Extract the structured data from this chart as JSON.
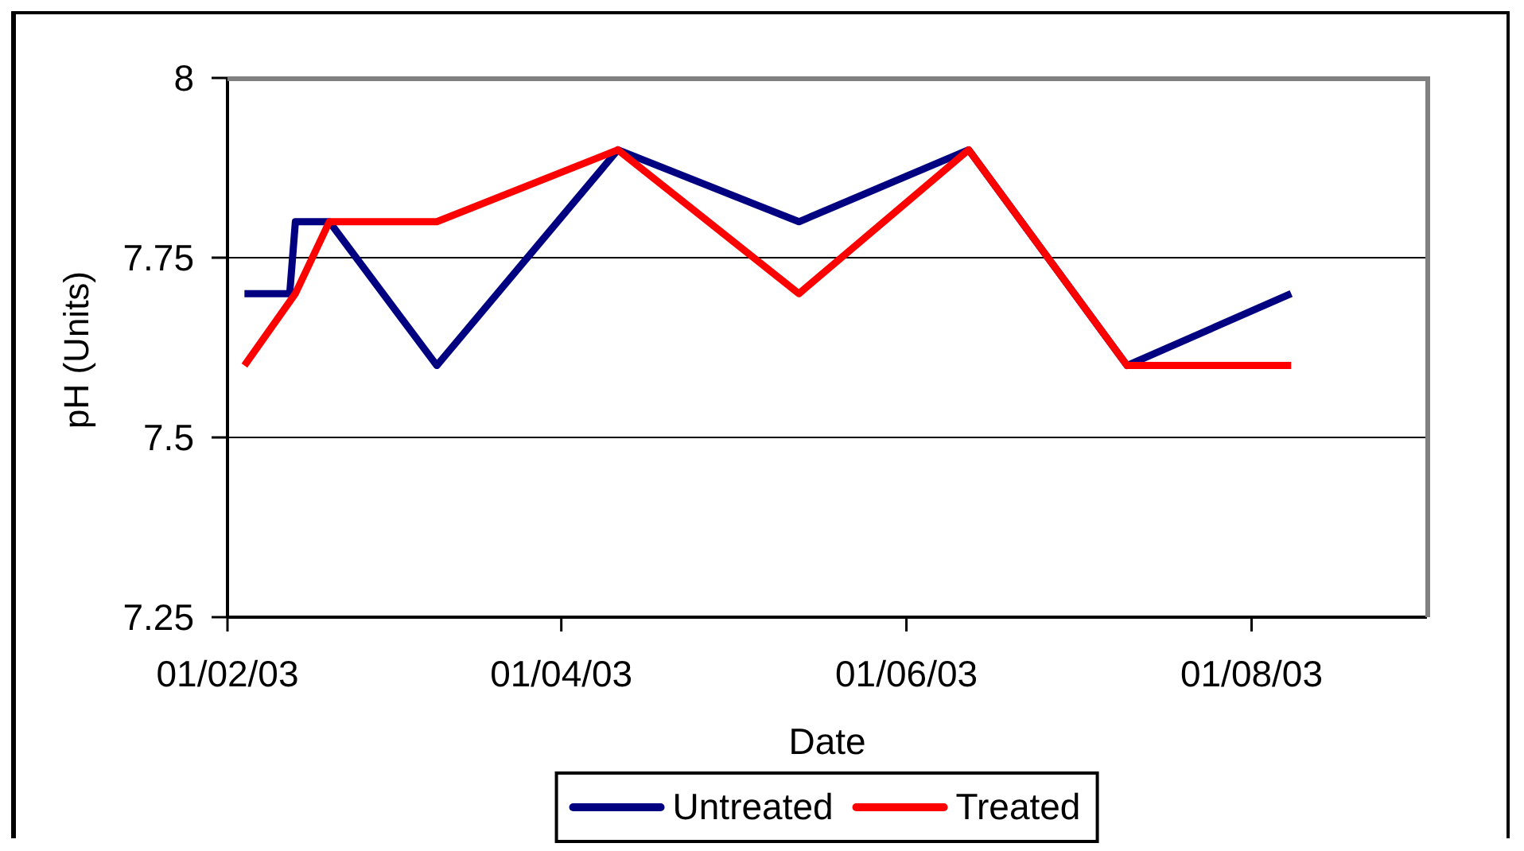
{
  "chart_data": {
    "type": "line",
    "xlabel": "Date",
    "ylabel": "pH (Units)",
    "series": [
      {
        "name": "Untreated",
        "color": "#000080",
        "x": [
          "2003-02-04",
          "2003-02-12",
          "2003-02-13",
          "2003-02-19",
          "2003-03-10",
          "2003-04-11",
          "2003-05-13",
          "2003-06-12",
          "2003-07-10",
          "2003-08-08"
        ],
        "values": [
          7.7,
          7.7,
          7.8,
          7.8,
          7.6,
          7.9,
          7.8,
          7.9,
          7.6,
          7.7
        ]
      },
      {
        "name": "Treated",
        "color": "#ff0000",
        "x": [
          "2003-02-04",
          "2003-02-13",
          "2003-02-19",
          "2003-03-10",
          "2003-04-11",
          "2003-05-13",
          "2003-06-12",
          "2003-07-10",
          "2003-08-08"
        ],
        "values": [
          7.6,
          7.7,
          7.8,
          7.8,
          7.9,
          7.7,
          7.9,
          7.6,
          7.6
        ]
      }
    ],
    "xlim": [
      "2003-02-01",
      "2003-09-01"
    ],
    "xticks": [
      {
        "value": "2003-02-01",
        "label": "01/02/03"
      },
      {
        "value": "2003-04-01",
        "label": "01/04/03"
      },
      {
        "value": "2003-06-01",
        "label": "01/06/03"
      },
      {
        "value": "2003-08-01",
        "label": "01/08/03"
      }
    ],
    "ylim": [
      7.25,
      8
    ],
    "yticks": [
      7.25,
      7.5,
      7.75,
      8
    ],
    "grid": "y",
    "legend": "bottom"
  }
}
